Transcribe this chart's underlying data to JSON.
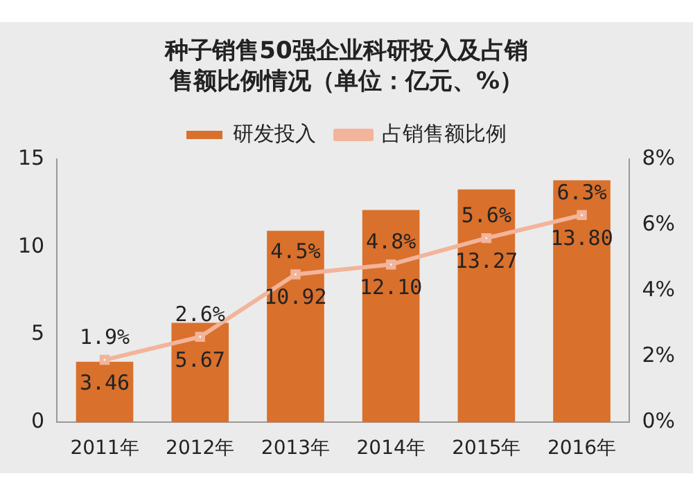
{
  "chart_data": {
    "type": "bar",
    "title": [
      "种子销售50强企业科研投入及占销",
      "售额比例情况（单位：亿元、%）"
    ],
    "categories": [
      "2011年",
      "2012年",
      "2013年",
      "2014年",
      "2015年",
      "2016年"
    ],
    "series": [
      {
        "name": "研发投入",
        "color": "#d9702c",
        "values": [
          3.46,
          5.67,
          10.92,
          12.1,
          13.27,
          13.8
        ],
        "value_labels": [
          "3.46",
          "5.67",
          "10.92",
          "12.10",
          "13.27",
          "13.80"
        ]
      },
      {
        "name": "占销售额比例",
        "type": "line",
        "axis": "y2",
        "color": "#f2b49a",
        "marker": "square",
        "values": [
          1.9,
          2.6,
          4.5,
          4.8,
          5.6,
          6.3
        ],
        "value_labels": [
          "1.9%",
          "2.6%",
          "4.5%",
          "4.8%",
          "5.6%",
          "6.3%"
        ]
      }
    ],
    "ylim": [
      0,
      15
    ],
    "yticks": [
      0,
      5,
      10,
      15
    ],
    "y2lim": [
      0,
      8
    ],
    "y2ticks": [
      {
        "value": 0,
        "label": "0%"
      },
      {
        "value": 2,
        "label": "2%"
      },
      {
        "value": 4,
        "label": "4%"
      },
      {
        "value": 6,
        "label": "6%"
      },
      {
        "value": 8,
        "label": "8%"
      }
    ],
    "grid": false,
    "legend": "top"
  }
}
